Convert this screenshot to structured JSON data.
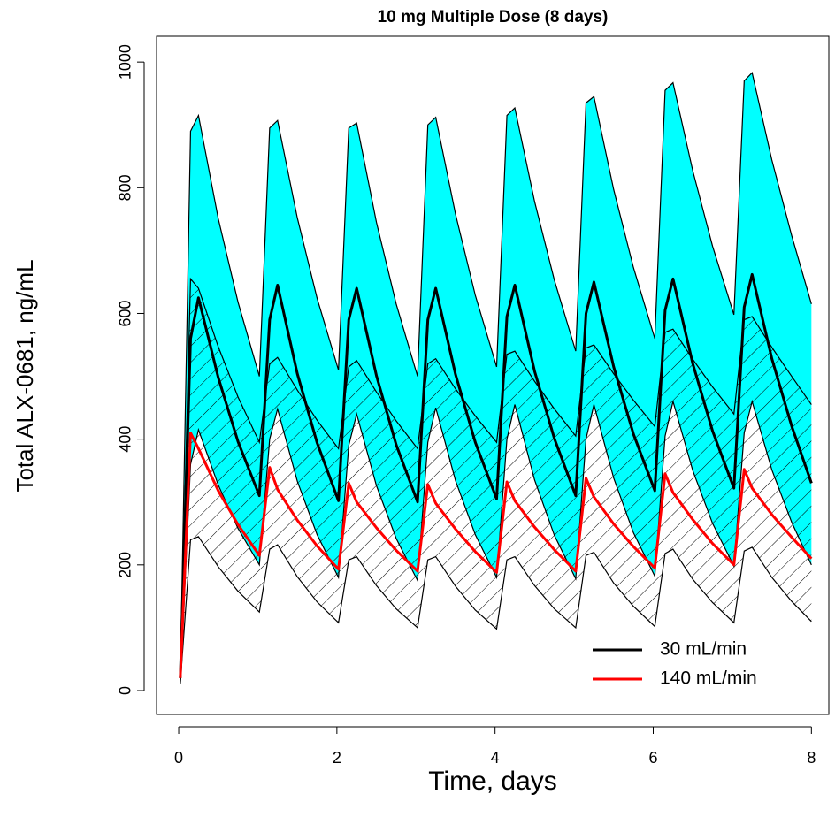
{
  "chart_data": {
    "type": "line",
    "title": "10 mg Multiple Dose (8 days)",
    "xlabel": "Time, days",
    "ylabel": "Total ALX-0681, ng/mL",
    "x": [
      0.02,
      0.15,
      0.25,
      0.5,
      0.75,
      1.02,
      1.15,
      1.25,
      1.5,
      1.75,
      2.02,
      2.15,
      2.25,
      2.5,
      2.75,
      3.02,
      3.15,
      3.25,
      3.5,
      3.75,
      4.02,
      4.15,
      4.25,
      4.5,
      4.75,
      5.02,
      5.15,
      5.25,
      5.5,
      5.75,
      6.02,
      6.15,
      6.25,
      6.5,
      6.75,
      7.02,
      7.15,
      7.25,
      7.5,
      7.75,
      8
    ],
    "xlim": [
      -0.28,
      8.22
    ],
    "ylim": [
      -38,
      1041
    ],
    "xticks": [
      0,
      2,
      4,
      6,
      8
    ],
    "yticks": [
      0,
      200,
      400,
      600,
      800,
      1000
    ],
    "bands": [
      {
        "fill": "#00ffff",
        "upper": [
          20,
          890,
          915,
          751,
          618,
          500,
          895,
          907,
          752,
          624,
          510,
          895,
          903,
          745,
          615,
          500,
          900,
          912,
          758,
          629,
          515,
          915,
          927,
          778,
          653,
          540,
          935,
          945,
          797,
          673,
          560,
          955,
          967,
          827,
          707,
          598,
          970,
          983,
          844,
          724,
          615
        ],
        "lower": [
          10,
          360,
          415,
          327,
          258,
          200,
          400,
          448,
          333,
          248,
          180,
          390,
          440,
          326,
          242,
          175,
          395,
          450,
          334,
          248,
          180,
          400,
          455,
          335,
          247,
          178,
          400,
          455,
          338,
          251,
          182,
          405,
          460,
          350,
          266,
          198,
          410,
          460,
          351,
          268,
          200
        ]
      },
      {
        "fill": "hatch",
        "upper": [
          20,
          655,
          640,
          547,
          467,
          395,
          520,
          530,
          478,
          430,
          385,
          515,
          525,
          475,
          429,
          385,
          520,
          528,
          480,
          437,
          395,
          535,
          540,
          492,
          448,
          405,
          545,
          550,
          504,
          462,
          420,
          570,
          575,
          527,
          483,
          440,
          590,
          595,
          546,
          500,
          455
        ],
        "lower": [
          10,
          240,
          245,
          197,
          158,
          125,
          225,
          232,
          181,
          141,
          108,
          208,
          213,
          167,
          130,
          100,
          208,
          213,
          166,
          128,
          98,
          208,
          213,
          167,
          130,
          100,
          215,
          220,
          171,
          134,
          102,
          218,
          225,
          177,
          140,
          108,
          222,
          228,
          180,
          142,
          110
        ]
      }
    ],
    "series": [
      {
        "name": "30 mL/min",
        "color": "#000000",
        "values": [
          20,
          560,
          625,
          498,
          396,
          310,
          590,
          645,
          504,
          394,
          302,
          590,
          640,
          501,
          391,
          300,
          590,
          640,
          503,
          395,
          305,
          595,
          645,
          508,
          401,
          310,
          600,
          650,
          515,
          408,
          318,
          605,
          655,
          520,
          413,
          322,
          610,
          662,
          528,
          421,
          330
        ]
      },
      {
        "name": "140 mL/min",
        "color": "#ff0000",
        "values": [
          20,
          410,
          385,
          318,
          264,
          215,
          355,
          320,
          271,
          230,
          193,
          330,
          300,
          259,
          223,
          190,
          328,
          298,
          257,
          221,
          188,
          332,
          302,
          260,
          224,
          190,
          338,
          308,
          265,
          229,
          195,
          345,
          315,
          272,
          234,
          200,
          352,
          322,
          280,
          244,
          210
        ]
      }
    ],
    "legend": "lower right"
  }
}
